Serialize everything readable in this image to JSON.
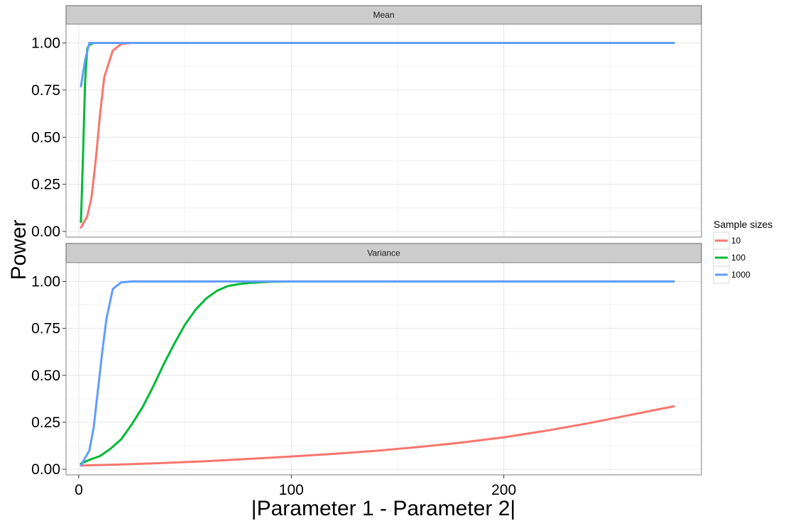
{
  "chart_data": {
    "type": "line",
    "xlabel": "|Parameter 1 - Parameter 2|",
    "ylabel": "Power",
    "xlim": [
      -6,
      293
    ],
    "ylim": [
      -0.03,
      1.1
    ],
    "x_ticks": [
      0,
      100,
      200
    ],
    "x_tick_labels": [
      "0",
      "100",
      "200"
    ],
    "y_ticks": [
      0,
      0.25,
      0.5,
      0.75,
      1.0
    ],
    "y_tick_labels": [
      "0.00",
      "0.25",
      "0.50",
      "0.75",
      "1.00"
    ],
    "grid": true,
    "legend": {
      "title": "Sample sizes",
      "position": "right",
      "entries": [
        {
          "label": "10",
          "color": "#F8766D"
        },
        {
          "label": "100",
          "color": "#00BA38"
        },
        {
          "label": "1000",
          "color": "#619CFF"
        }
      ]
    },
    "panels": [
      {
        "title": "Mean",
        "series": [
          {
            "name": "10",
            "color": "#F8766D",
            "x": [
              1,
              2,
              4,
              6,
              8,
              10,
              12,
              16,
              20,
              25,
              280
            ],
            "y": [
              0.02,
              0.04,
              0.08,
              0.18,
              0.38,
              0.62,
              0.82,
              0.96,
              0.995,
              1.0,
              1.0
            ]
          },
          {
            "name": "100",
            "color": "#00BA38",
            "x": [
              1,
              2,
              3,
              4,
              5,
              7,
              10,
              280
            ],
            "y": [
              0.05,
              0.4,
              0.8,
              0.97,
              0.99,
              1.0,
              1.0,
              1.0
            ]
          },
          {
            "name": "1000",
            "color": "#619CFF",
            "x": [
              1,
              3,
              5,
              7,
              10,
              280
            ],
            "y": [
              0.77,
              0.91,
              1.0,
              1.0,
              1.0,
              1.0
            ]
          }
        ]
      },
      {
        "title": "Variance",
        "series": [
          {
            "name": "10",
            "color": "#F8766D",
            "x": [
              1,
              20,
              40,
              60,
              80,
              100,
              120,
              140,
              160,
              180,
              200,
              220,
              240,
              260,
              280
            ],
            "y": [
              0.02,
              0.025,
              0.033,
              0.043,
              0.055,
              0.068,
              0.082,
              0.098,
              0.118,
              0.142,
              0.17,
              0.205,
              0.245,
              0.29,
              0.335
            ]
          },
          {
            "name": "100",
            "color": "#00BA38",
            "x": [
              1,
              5,
              10,
              15,
              20,
              25,
              30,
              35,
              40,
              45,
              50,
              55,
              60,
              65,
              70,
              75,
              80,
              90,
              100,
              110,
              280
            ],
            "y": [
              0.03,
              0.05,
              0.07,
              0.11,
              0.16,
              0.24,
              0.33,
              0.44,
              0.56,
              0.67,
              0.77,
              0.85,
              0.91,
              0.95,
              0.975,
              0.985,
              0.992,
              0.998,
              1.0,
              1.0,
              1.0
            ]
          },
          {
            "name": "1000",
            "color": "#619CFF",
            "x": [
              1,
              3,
              5,
              7,
              9,
              11,
              13,
              16,
              20,
              25,
              280
            ],
            "y": [
              0.02,
              0.06,
              0.1,
              0.22,
              0.42,
              0.62,
              0.8,
              0.96,
              0.995,
              1.0,
              1.0
            ]
          }
        ]
      }
    ]
  }
}
